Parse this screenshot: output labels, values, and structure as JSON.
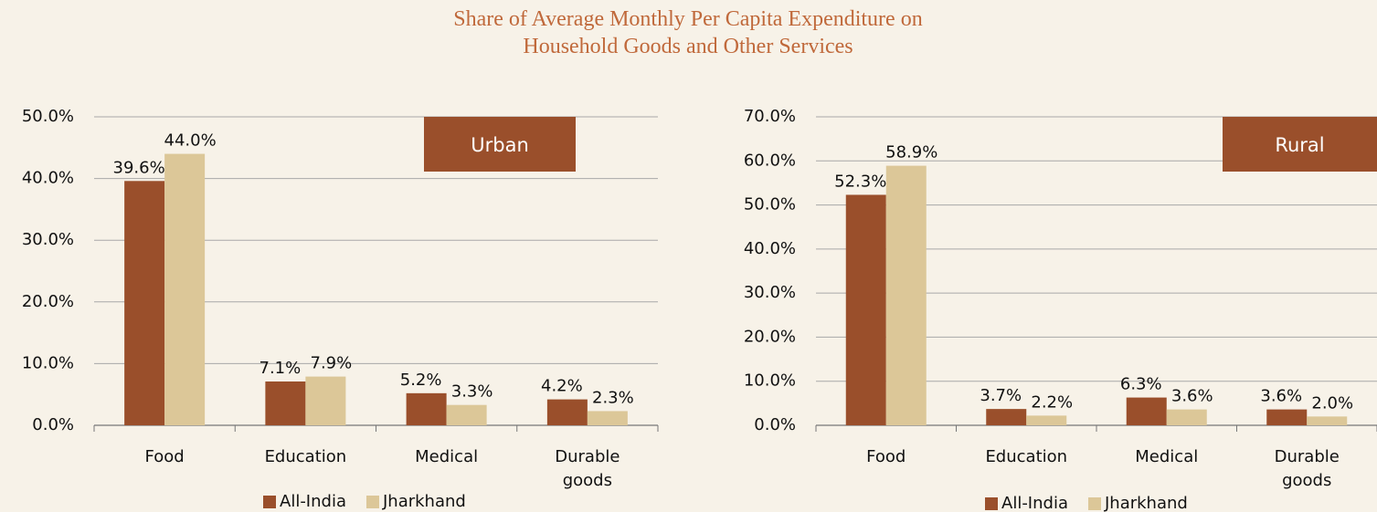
{
  "title": "Share of Average Monthly Per Capita Expenditure on Household Goods and Other Services",
  "chart_data": [
    {
      "type": "bar",
      "annotation": "Urban",
      "legend": "bottom",
      "grid": true,
      "categories": [
        "Food",
        "Education",
        "Medical",
        "Durable goods"
      ],
      "series": [
        {
          "name": "All-India",
          "color": "#9a4f2b",
          "values": [
            39.6,
            7.1,
            5.2,
            4.2
          ],
          "value_labels": [
            "39.6%",
            "7.1%",
            "5.2%",
            "4.2%"
          ]
        },
        {
          "name": "Jharkhand",
          "color": "#dcc798",
          "values": [
            44.0,
            7.9,
            3.3,
            2.3
          ],
          "value_labels": [
            "44.0%",
            "7.9%",
            "3.3%",
            "2.3%"
          ]
        }
      ],
      "ylim": [
        0,
        50
      ],
      "yticks": [
        {
          "value": 0,
          "label": "0.0%"
        },
        {
          "value": 10,
          "label": "10.0%"
        },
        {
          "value": 20,
          "label": "20.0%"
        },
        {
          "value": 30,
          "label": "30.0%"
        },
        {
          "value": 40,
          "label": "40.0%"
        },
        {
          "value": 50,
          "label": "50.0%"
        }
      ]
    },
    {
      "type": "bar",
      "annotation": "Rural",
      "legend": "bottom",
      "grid": true,
      "categories": [
        "Food",
        "Education",
        "Medical",
        "Durable goods"
      ],
      "series": [
        {
          "name": "All-India",
          "color": "#9a4f2b",
          "values": [
            52.3,
            3.7,
            6.3,
            3.6
          ],
          "value_labels": [
            "52.3%",
            "3.7%",
            "6.3%",
            "3.6%"
          ]
        },
        {
          "name": "Jharkhand",
          "color": "#dcc798",
          "values": [
            58.9,
            2.2,
            3.6,
            2.0
          ],
          "value_labels": [
            "58.9%",
            "2.2%",
            "3.6%",
            "2.0%"
          ]
        }
      ],
      "ylim": [
        0,
        70
      ],
      "yticks": [
        {
          "value": 0,
          "label": "0.0%"
        },
        {
          "value": 10,
          "label": "10.0%"
        },
        {
          "value": 20,
          "label": "20.0%"
        },
        {
          "value": 30,
          "label": "30.0%"
        },
        {
          "value": 40,
          "label": "40.0%"
        },
        {
          "value": 50,
          "label": "50.0%"
        },
        {
          "value": 60,
          "label": "60.0%"
        },
        {
          "value": 70,
          "label": "70.0%"
        }
      ]
    }
  ]
}
